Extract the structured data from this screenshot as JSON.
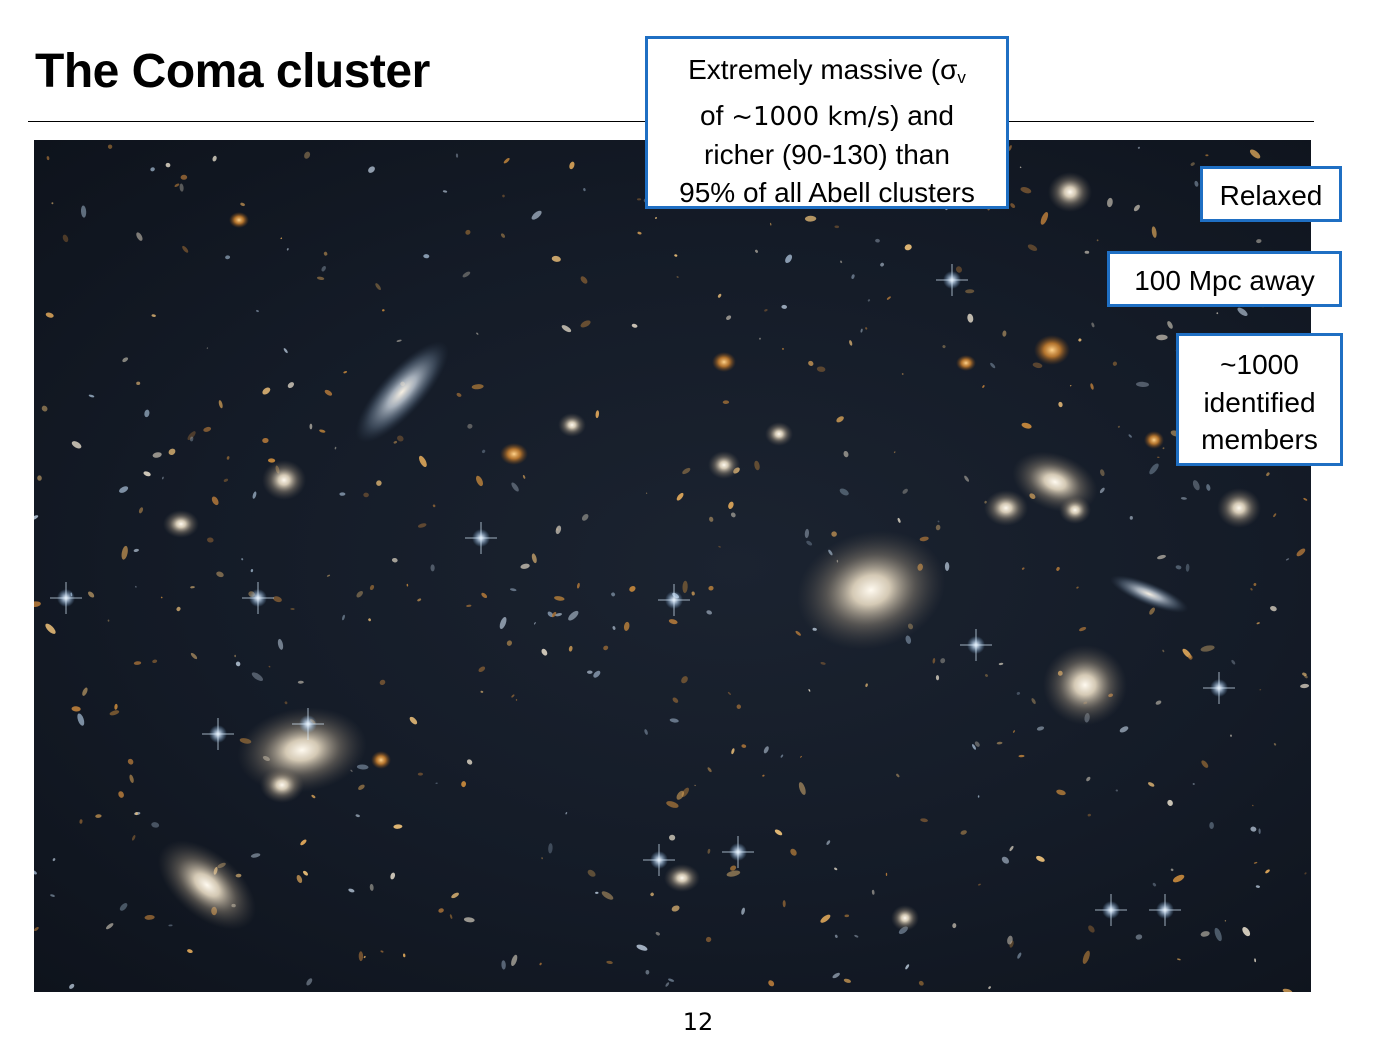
{
  "slide": {
    "title": "The Coma cluster",
    "page_number": "12"
  },
  "callouts": {
    "massive": {
      "line1_prefix": "Extremely massive (σ",
      "line1_subscript": "v",
      "line2_prefix": "of ",
      "line2_value": "~1000 km/s",
      "line2_suffix": ") and",
      "line3": "richer (90-130) than",
      "line4": "95% of all Abell clusters"
    },
    "relaxed": "Relaxed",
    "distance": "100 Mpc away",
    "members": {
      "line1": "~1000",
      "line2": "identified",
      "line3": "members"
    }
  },
  "colors": {
    "callout_border": "#1f6fc3",
    "sky_background": "#141b27"
  }
}
